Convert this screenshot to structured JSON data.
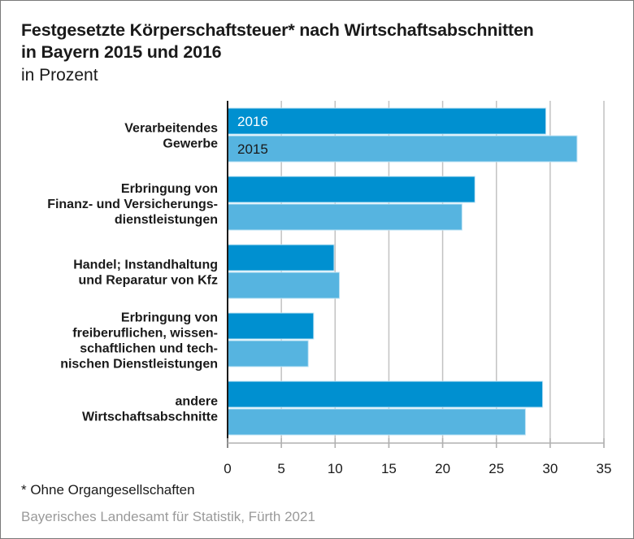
{
  "chart_data": {
    "type": "bar",
    "orientation": "horizontal",
    "title": "Festgesetzte Körperschaftsteuer* nach Wirtschaftsabschnitten in Bayern 2015 und 2016",
    "title_lines": [
      "Festgesetzte Körperschaftsteuer* nach Wirtschaftsabschnitten",
      "in Bayern 2015 und 2016"
    ],
    "subtitle": "in Prozent",
    "categories": [
      [
        "Verarbeitendes",
        "Gewerbe"
      ],
      [
        "Erbringung von",
        "Finanz- und Versicherungs-",
        "dienstleistungen"
      ],
      [
        "Handel; Instandhaltung",
        "und Reparatur von Kfz"
      ],
      [
        "Erbringung von",
        "freiberuflichen, wissen-",
        "schaftlichen und tech-",
        "nischen Dienstleistungen"
      ],
      [
        "andere",
        "Wirtschaftsabschnitte"
      ]
    ],
    "series": [
      {
        "name": "2016",
        "color": "#0090d0",
        "label_color": "#ffffff",
        "values": [
          29.6,
          23.0,
          9.9,
          8.0,
          29.3
        ]
      },
      {
        "name": "2015",
        "color": "#56b4e0",
        "label_color": "#1a1a1a",
        "values": [
          32.5,
          21.8,
          10.4,
          7.5,
          27.7
        ]
      }
    ],
    "xlabel": "",
    "ylabel": "",
    "xlim": [
      0,
      35
    ],
    "xticks": [
      0,
      5,
      10,
      15,
      20,
      25,
      30,
      35
    ],
    "grid": true,
    "legend": "inside-first-bars"
  },
  "footnote": "*  Ohne Organgesellschaften",
  "source": "Bayerisches Landesamt für Statistik, Fürth 2021"
}
